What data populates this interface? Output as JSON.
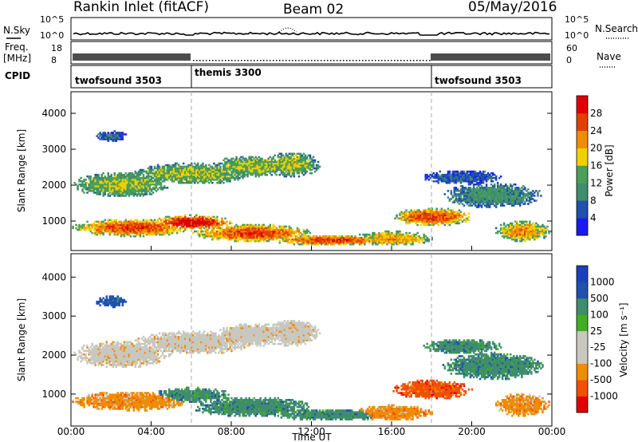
{
  "header": {
    "station": "Rankin Inlet (fitACF)",
    "beam": "Beam 02",
    "date": "05/May/2016"
  },
  "panels": {
    "nsky_label": "N.Sky",
    "nsky_ticks": [
      "10^5",
      "10^0"
    ],
    "nsearch_label": "N.Search",
    "freq_label": "Freq.",
    "freq_unit": "[MHz]",
    "freq_ticks": [
      "18",
      "8"
    ],
    "nave_label": "Nave",
    "nave_ticks": [
      "60",
      "0"
    ],
    "cpid_label": "CPID",
    "cpid_segments": [
      "twofsound 3503",
      "themis 3300",
      "twofsound 3503"
    ]
  },
  "colors": {
    "power": [
      "#1a1af0",
      "#2050b0",
      "#3f8c6e",
      "#4aa05a",
      "#f0d000",
      "#f08c00",
      "#e04000",
      "#e00000"
    ],
    "velocity": [
      "#e00000",
      "#f05000",
      "#f08c00",
      "#c8c8c0",
      "#c8c8c0",
      "#40b020",
      "#3f8c6e",
      "#2050b0"
    ]
  },
  "chart_data": [
    {
      "type": "heatmap",
      "name": "power",
      "ylabel": "Slant Range [km]",
      "xlabel": "Time UT",
      "ylim": [
        180,
        4600
      ],
      "yticks": [
        "1000",
        "2000",
        "3000",
        "4000"
      ],
      "xticks": [
        "00:00",
        "04:00",
        "08:00",
        "12:00",
        "16:00",
        "20:00",
        "00:00"
      ],
      "colorbar_label": "Power [dB]",
      "colorbar_ticks": [
        "4",
        "8",
        "12",
        "16",
        "20",
        "24",
        "28"
      ]
    },
    {
      "type": "heatmap",
      "name": "velocity",
      "ylabel": "Slant Range [km]",
      "xlabel": "Time UT",
      "ylim": [
        180,
        4600
      ],
      "yticks": [
        "1000",
        "2000",
        "3000",
        "4000"
      ],
      "xticks": [
        "00:00",
        "04:00",
        "08:00",
        "12:00",
        "16:00",
        "20:00",
        "00:00"
      ],
      "colorbar_label": "Velocity [m s⁻¹]",
      "colorbar_ticks": [
        "-1000",
        "-500",
        "-100",
        "-25",
        "25",
        "100",
        "500",
        "1000"
      ]
    }
  ]
}
